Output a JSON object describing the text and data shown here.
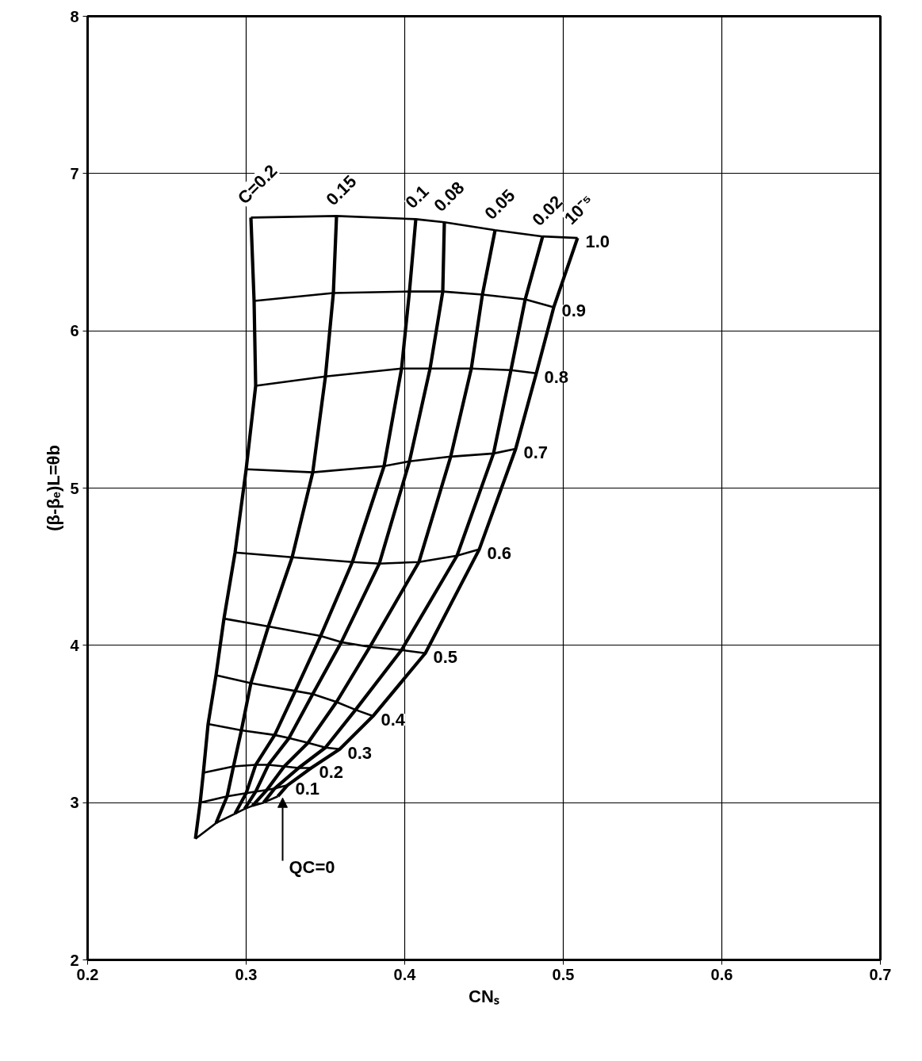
{
  "chart_data": {
    "type": "line",
    "xlabel": "CNₛ",
    "ylabel": "(β-βₑ)L=θb",
    "xlim": [
      0.2,
      0.7
    ],
    "ylim": [
      2,
      8
    ],
    "xticks": [
      0.2,
      0.3,
      0.4,
      0.5,
      0.6,
      0.7
    ],
    "yticks": [
      2,
      3,
      4,
      5,
      6,
      7,
      8
    ],
    "grid": true,
    "marker": "none",
    "line_style": "solid",
    "annotations": [
      {
        "text": "QC=0",
        "x": 0.323,
        "y": 3.03
      }
    ],
    "series": [
      {
        "name": "1.0",
        "color": "#000000",
        "x": [
          0.303,
          0.357,
          0.407,
          0.425,
          0.457,
          0.487,
          0.509
        ],
        "values": [
          6.72,
          6.73,
          6.71,
          6.69,
          6.64,
          6.6,
          6.59
        ]
      },
      {
        "name": "0.9",
        "color": "#000000",
        "x": [
          0.305,
          0.355,
          0.403,
          0.424,
          0.449,
          0.476,
          0.494
        ],
        "values": [
          6.19,
          6.24,
          6.25,
          6.25,
          6.23,
          6.2,
          6.15
        ]
      },
      {
        "name": "0.8",
        "color": "#000000",
        "x": [
          0.306,
          0.35,
          0.398,
          0.416,
          0.442,
          0.467,
          0.483
        ],
        "values": [
          5.65,
          5.71,
          5.76,
          5.76,
          5.76,
          5.75,
          5.73
        ]
      },
      {
        "name": "0.7",
        "color": "#000000",
        "x": [
          0.3,
          0.342,
          0.387,
          0.403,
          0.429,
          0.456,
          0.47
        ],
        "values": [
          5.12,
          5.1,
          5.14,
          5.17,
          5.2,
          5.22,
          5.25
        ]
      },
      {
        "name": "0.6",
        "color": "#000000",
        "x": [
          0.293,
          0.329,
          0.367,
          0.384,
          0.409,
          0.433,
          0.447
        ],
        "values": [
          4.59,
          4.56,
          4.53,
          4.52,
          4.53,
          4.57,
          4.61
        ]
      },
      {
        "name": "0.5",
        "color": "#000000",
        "x": [
          0.286,
          0.314,
          0.347,
          0.36,
          0.378,
          0.398,
          0.413
        ],
        "values": [
          4.17,
          4.12,
          4.06,
          4.02,
          3.99,
          3.97,
          3.95
        ]
      },
      {
        "name": "0.4",
        "color": "#000000",
        "x": [
          0.281,
          0.303,
          0.331,
          0.342,
          0.357,
          0.369,
          0.38
        ],
        "values": [
          3.81,
          3.76,
          3.71,
          3.69,
          3.64,
          3.59,
          3.55
        ]
      },
      {
        "name": "0.3",
        "color": "#000000",
        "x": [
          0.276,
          0.297,
          0.318,
          0.327,
          0.339,
          0.35,
          0.359
        ],
        "values": [
          3.5,
          3.46,
          3.43,
          3.41,
          3.38,
          3.35,
          3.34
        ]
      },
      {
        "name": "0.2",
        "color": "#000000",
        "x": [
          0.273,
          0.292,
          0.306,
          0.314,
          0.324,
          0.333,
          0.341
        ],
        "values": [
          3.19,
          3.23,
          3.24,
          3.24,
          3.23,
          3.22,
          3.22
        ]
      },
      {
        "name": "0.1",
        "color": "#000000",
        "x": [
          0.271,
          0.288,
          0.3,
          0.306,
          0.313,
          0.318,
          0.326
        ],
        "values": [
          3.0,
          3.04,
          3.06,
          3.07,
          3.08,
          3.09,
          3.11
        ]
      },
      {
        "color": "#000000",
        "x": [
          0.268,
          0.281,
          0.293,
          0.299,
          0.304,
          0.311,
          0.32
        ],
        "values": [
          2.77,
          2.87,
          2.93,
          2.96,
          2.98,
          3.0,
          3.04
        ]
      },
      {
        "name": "C=0.2",
        "color": "#000000",
        "x": [
          0.268,
          0.271,
          0.273,
          0.276,
          0.281,
          0.286,
          0.293,
          0.3,
          0.306,
          0.305,
          0.303
        ],
        "values": [
          2.77,
          3.0,
          3.19,
          3.5,
          3.81,
          4.17,
          4.59,
          5.12,
          5.65,
          6.19,
          6.72
        ]
      },
      {
        "name": "0.15",
        "color": "#000000",
        "x": [
          0.281,
          0.288,
          0.292,
          0.297,
          0.303,
          0.314,
          0.329,
          0.342,
          0.35,
          0.355,
          0.357
        ],
        "values": [
          2.87,
          3.04,
          3.23,
          3.46,
          3.76,
          4.12,
          4.56,
          5.1,
          5.71,
          6.24,
          6.73
        ]
      },
      {
        "name": "0.1",
        "color": "#000000",
        "x": [
          0.293,
          0.3,
          0.306,
          0.318,
          0.331,
          0.347,
          0.367,
          0.387,
          0.398,
          0.403,
          0.407
        ],
        "values": [
          2.93,
          3.06,
          3.24,
          3.43,
          3.71,
          4.06,
          4.53,
          5.14,
          5.76,
          6.25,
          6.71
        ]
      },
      {
        "name": "0.08",
        "color": "#000000",
        "x": [
          0.299,
          0.306,
          0.314,
          0.327,
          0.342,
          0.36,
          0.384,
          0.403,
          0.416,
          0.424,
          0.425
        ],
        "values": [
          2.96,
          3.07,
          3.24,
          3.41,
          3.69,
          4.02,
          4.52,
          5.17,
          5.76,
          6.25,
          6.69
        ]
      },
      {
        "name": "0.05",
        "color": "#000000",
        "x": [
          0.304,
          0.313,
          0.324,
          0.339,
          0.357,
          0.378,
          0.409,
          0.429,
          0.442,
          0.449,
          0.457
        ],
        "values": [
          2.98,
          3.08,
          3.23,
          3.38,
          3.64,
          3.99,
          4.53,
          5.2,
          5.76,
          6.23,
          6.64
        ]
      },
      {
        "name": "0.02",
        "color": "#000000",
        "x": [
          0.311,
          0.318,
          0.333,
          0.35,
          0.369,
          0.398,
          0.433,
          0.456,
          0.467,
          0.476,
          0.487
        ],
        "values": [
          3.0,
          3.09,
          3.22,
          3.35,
          3.59,
          3.97,
          4.57,
          5.22,
          5.75,
          6.2,
          6.6
        ]
      },
      {
        "name": "10⁻⁵",
        "color": "#000000",
        "x": [
          0.32,
          0.326,
          0.341,
          0.359,
          0.38,
          0.413,
          0.447,
          0.47,
          0.483,
          0.494,
          0.509
        ],
        "values": [
          3.04,
          3.11,
          3.22,
          3.34,
          3.55,
          3.95,
          4.61,
          5.25,
          5.73,
          6.15,
          6.59
        ]
      }
    ]
  }
}
